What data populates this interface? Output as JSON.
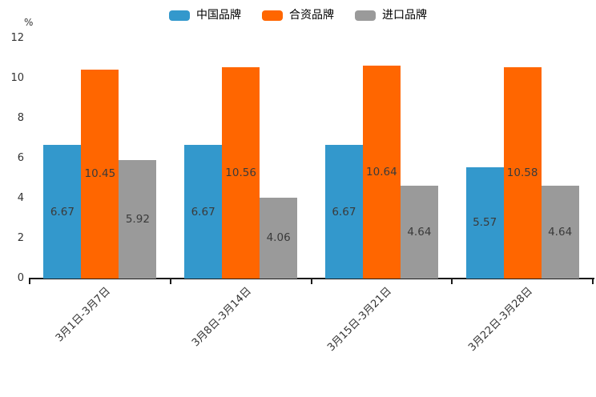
{
  "chart_data": {
    "type": "bar",
    "title": "",
    "unit_label": "%",
    "categories": [
      "3月1日-3月7日",
      "3月8日-3月14日",
      "3月15日-3月21日",
      "3月22日-3月28日"
    ],
    "series": [
      {
        "name": "中国品牌",
        "color": "#3398CC",
        "values": [
          6.67,
          6.67,
          6.67,
          5.57
        ]
      },
      {
        "name": "合资品牌",
        "color": "#FF6600",
        "values": [
          10.45,
          10.56,
          10.64,
          10.58
        ]
      },
      {
        "name": "进口品牌",
        "color": "#9A9A9A",
        "values": [
          5.92,
          4.06,
          4.64,
          4.64
        ]
      }
    ],
    "ylim": [
      0,
      12
    ],
    "ytick_step": 2,
    "grid": false,
    "legend_position": "top-center",
    "value_labels": true,
    "value_label_decimals": 2,
    "xlabel": "",
    "ylabel": "%"
  },
  "style_colors": {
    "axis": "#1a1a1a",
    "tick_text": "#333333",
    "value_label_text": "#3a3a3a",
    "background": "#ffffff"
  }
}
